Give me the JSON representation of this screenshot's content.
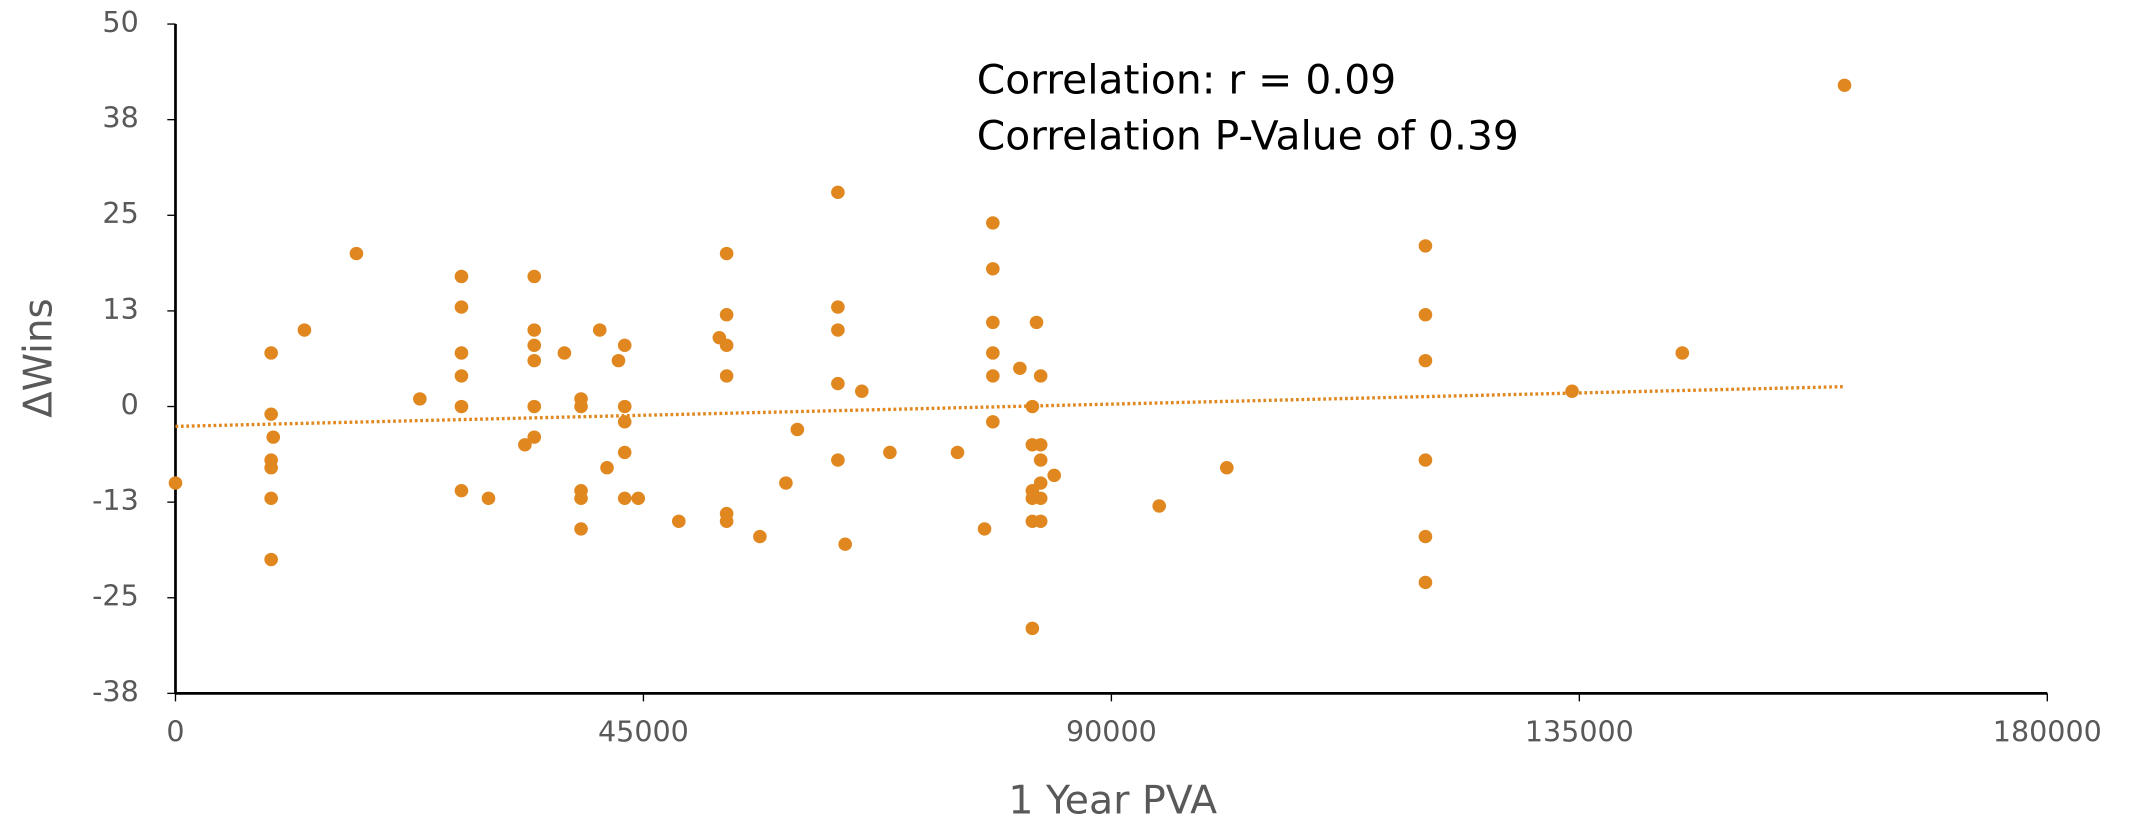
{
  "chart_data": {
    "type": "scatter",
    "xlabel": "1 Year PVA",
    "ylabel": "ΔWins",
    "annotations": [
      "Correlation: r = 0.09",
      "Correlation P-Value of 0.39"
    ],
    "color": "#e0871f",
    "xlim": [
      0,
      180000
    ],
    "xticks": [
      0,
      45000,
      90000,
      135000,
      180000
    ],
    "ylim": [
      -37.5,
      50
    ],
    "yticks": [
      {
        "value": -37.5,
        "label": "-38"
      },
      {
        "value": -25,
        "label": "-25"
      },
      {
        "value": -12.5,
        "label": "-13"
      },
      0,
      {
        "value": 12.5,
        "label": "13"
      },
      25,
      {
        "value": 37.5,
        "label": "38"
      },
      50
    ],
    "trendline": {
      "x": [
        0,
        160500
      ],
      "y": [
        -2.6,
        2.6
      ]
    },
    "x": [
      0,
      9200,
      9200,
      9400,
      9200,
      9200,
      9200,
      9200,
      12400,
      17400,
      23500,
      27500,
      27500,
      27500,
      27500,
      27500,
      27500,
      30100,
      33600,
      34500,
      34500,
      34500,
      34500,
      34500,
      34500,
      37400,
      39000,
      39000,
      39000,
      39000,
      39000,
      40800,
      41500,
      42600,
      43200,
      43200,
      43200,
      43200,
      43200,
      44500,
      48400,
      52300,
      53000,
      53000,
      53000,
      53000,
      53000,
      53000,
      56200,
      58700,
      59800,
      63700,
      63700,
      63700,
      63700,
      63700,
      64400,
      66000,
      68700,
      75200,
      77800,
      78600,
      78600,
      78600,
      78600,
      78600,
      78600,
      81200,
      82400,
      82400,
      82400,
      82400,
      82400,
      82400,
      82800,
      83200,
      83200,
      83200,
      83200,
      83200,
      83200,
      84500,
      94600,
      101100,
      120200,
      120200,
      120200,
      120200,
      120200,
      120200,
      134300,
      144900,
      160500
    ],
    "values": [
      -10,
      7,
      -1,
      -4,
      -7,
      -8,
      -12,
      -20,
      10,
      20,
      1,
      17,
      13,
      7,
      4,
      0,
      -11,
      -12,
      -5,
      17,
      10,
      8,
      6,
      0,
      -4,
      7,
      1,
      0,
      -11,
      -12,
      -16,
      10,
      -8,
      6,
      8,
      0,
      -2,
      -6,
      -12,
      -12,
      -15,
      9,
      20,
      12,
      8,
      4,
      -14,
      -15,
      -17,
      -10,
      -3,
      28,
      13,
      10,
      3,
      -7,
      -18,
      2,
      -6,
      -6,
      -16,
      24,
      18,
      11,
      7,
      4,
      -2,
      5,
      0,
      -5,
      -11,
      -12,
      -15,
      -29,
      11,
      4,
      -5,
      -7,
      -10,
      -12,
      -15,
      -9,
      -13,
      -8,
      21,
      12,
      6,
      -7,
      -17,
      -23,
      2,
      7,
      42
    ]
  }
}
